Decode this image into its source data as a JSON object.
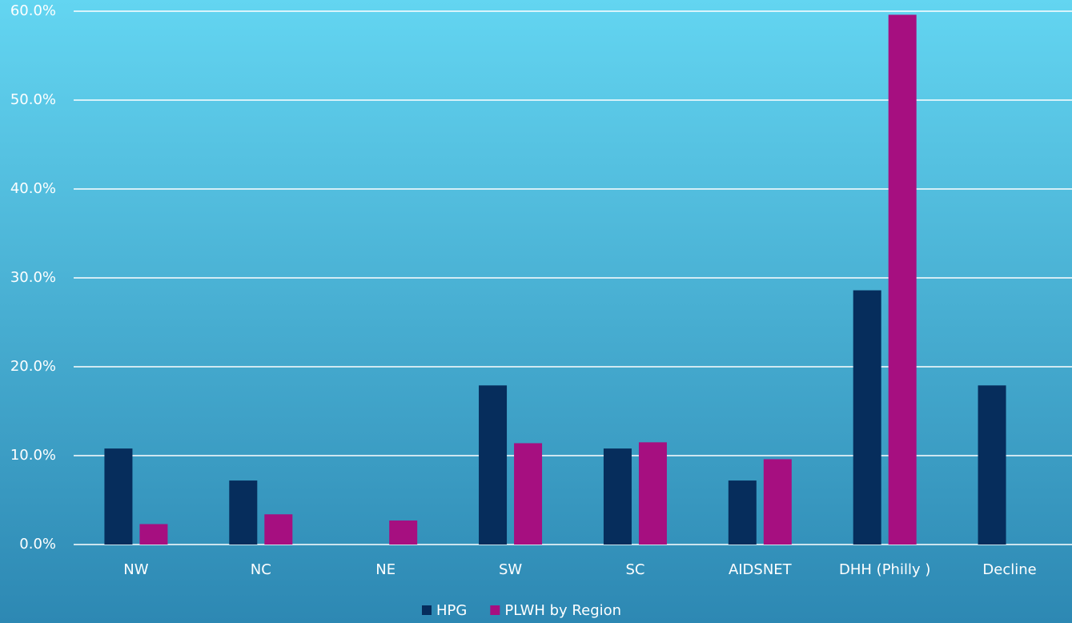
{
  "chart_data": {
    "type": "bar",
    "categories": [
      "NW",
      "NC",
      "NE",
      "SW",
      "SC",
      "AIDSNET",
      "DHH (Philly )",
      "Decline"
    ],
    "series": [
      {
        "name": "HPG",
        "color": "#062d5c",
        "values": [
          10.8,
          7.2,
          0,
          17.9,
          10.8,
          7.2,
          28.6,
          17.9
        ]
      },
      {
        "name": "PLWH by Region",
        "color": "#a60f80",
        "values": [
          2.3,
          3.4,
          2.7,
          11.4,
          11.5,
          9.6,
          59.6,
          0
        ]
      }
    ],
    "ylim": [
      0,
      60
    ],
    "yticks": [
      {
        "value": 0,
        "label": "0.0%"
      },
      {
        "value": 10,
        "label": "10.0%"
      },
      {
        "value": 20,
        "label": "20.0%"
      },
      {
        "value": 30,
        "label": "30.0%"
      },
      {
        "value": 40,
        "label": "40.0%"
      },
      {
        "value": 50,
        "label": "50.0%"
      },
      {
        "value": 60,
        "label": "60.0%"
      }
    ],
    "grid": true,
    "legend": "bottom"
  }
}
